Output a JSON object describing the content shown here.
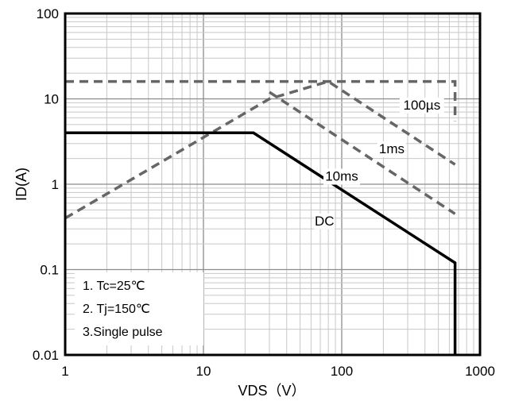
{
  "chart_data": {
    "type": "line",
    "title": "",
    "xlabel": "VDS（V）",
    "ylabel": "ID(A)",
    "xscale": "log",
    "yscale": "log",
    "xlim": [
      1,
      1000
    ],
    "ylim": [
      0.01,
      100
    ],
    "grid": true,
    "x_tick_labels": [
      "1",
      "10",
      "100",
      "1000"
    ],
    "y_tick_labels": [
      "100",
      "10",
      "1",
      "0.1",
      "0.01"
    ],
    "series": [
      {
        "name": "100µs",
        "style": "dashed",
        "color": "#666666",
        "points": [
          [
            1,
            16
          ],
          [
            660,
            16
          ],
          [
            660,
            5.5
          ]
        ]
      },
      {
        "name": "1ms",
        "style": "dashed",
        "color": "#666666",
        "points": [
          [
            1,
            0.4
          ],
          [
            30,
            10
          ],
          [
            80,
            16
          ],
          [
            660,
            1.7
          ]
        ]
      },
      {
        "name": "10ms",
        "style": "dashed",
        "color": "#666666",
        "points": [
          [
            30,
            12
          ],
          [
            660,
            0.45
          ]
        ]
      },
      {
        "name": "DC",
        "style": "solid",
        "color": "#000000",
        "points": [
          [
            1,
            4
          ],
          [
            23,
            4
          ],
          [
            660,
            0.12
          ],
          [
            660,
            0.01
          ]
        ]
      }
    ],
    "curve_labels": [
      {
        "text": "100µs",
        "x": 380,
        "y": 7.5
      },
      {
        "text": "1ms",
        "x": 230,
        "y": 2.3
      },
      {
        "text": "10ms",
        "x": 100,
        "y": 1.1
      },
      {
        "text": "DC",
        "x": 75,
        "y": 0.33
      }
    ],
    "annotations": [
      "1. Tc=25℃",
      "2. Tj=150℃",
      "3.Single pulse"
    ]
  }
}
